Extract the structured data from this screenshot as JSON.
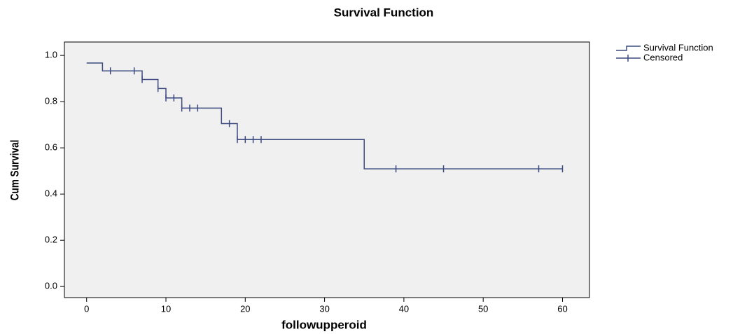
{
  "chart_data": {
    "type": "step",
    "title": "Survival Function",
    "x_label": "followupperoid",
    "y_label": "Cum Survival",
    "xlim": [
      -2.8,
      63.4
    ],
    "ylim": [
      -0.048,
      1.058
    ],
    "xticks": [
      0,
      10,
      20,
      30,
      40,
      50,
      60
    ],
    "yticks": [
      {
        "value": 0,
        "label": "0.0"
      },
      0.2,
      0.4,
      0.6,
      0.8,
      {
        "value": 1,
        "label": "1.0"
      }
    ],
    "series": [
      {
        "name": "Survival Function",
        "color": "#3c4a80",
        "kind": "step",
        "x": [
          0,
          2,
          7,
          9,
          10,
          12,
          17,
          19,
          35,
          60
        ],
        "values": [
          0.967,
          0.933,
          0.896,
          0.857,
          0.816,
          0.772,
          0.705,
          0.636,
          0.509,
          0.509
        ]
      },
      {
        "name": "Censored",
        "color": "#3c4a80",
        "kind": "censor",
        "x": [
          3,
          6,
          7,
          9,
          10,
          11,
          12,
          13,
          14,
          18,
          19,
          20,
          21,
          22,
          39,
          45,
          57,
          60
        ],
        "values": [
          0.933,
          0.933,
          0.896,
          0.857,
          0.816,
          0.816,
          0.772,
          0.772,
          0.772,
          0.705,
          0.636,
          0.636,
          0.636,
          0.636,
          0.509,
          0.509,
          0.509,
          0.509
        ]
      }
    ]
  }
}
